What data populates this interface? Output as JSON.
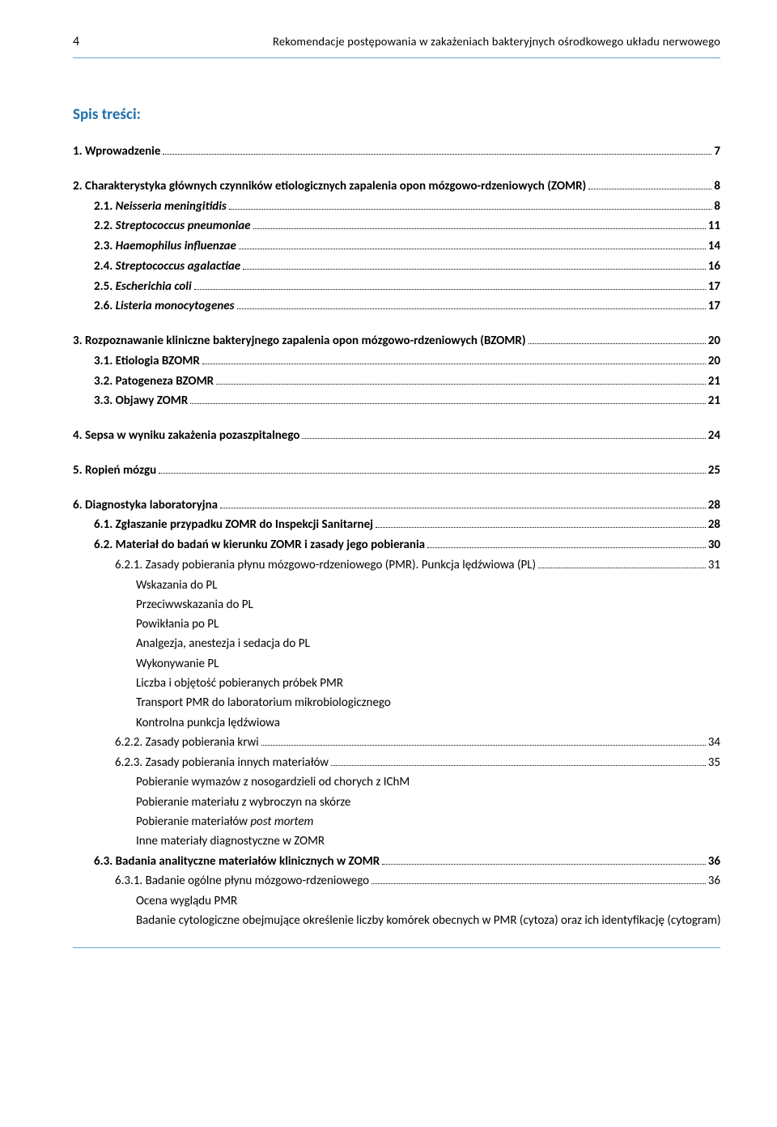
{
  "page_number": "4",
  "header_title": "Rekomendacje postępowania w zakażeniach bakteryjnych ośrodkowego układu nerwowego",
  "toc_title": "Spis treści:",
  "entries": [
    {
      "type": "l1",
      "num": "1.",
      "text": "Wprowadzenie",
      "page": "7",
      "first": true
    },
    {
      "type": "l1",
      "num": "2.",
      "text": "Charakterystyka głównych czynników etiologicznych zapalenia opon mózgowo-rdzeniowych (ZOMR)",
      "page": "8"
    },
    {
      "type": "l2",
      "num": "2.1.",
      "text": "Neisseria meningitidis",
      "italic": true,
      "page": "8"
    },
    {
      "type": "l2",
      "num": "2.2.",
      "text": "Streptococcus pneumoniae",
      "italic": true,
      "page": "11"
    },
    {
      "type": "l2",
      "num": "2.3.",
      "text": "Haemophilus influenzae",
      "italic": true,
      "page": "14"
    },
    {
      "type": "l2",
      "num": "2.4.",
      "text": "Streptococcus agalactiae",
      "italic": true,
      "page": "16"
    },
    {
      "type": "l2",
      "num": "2.5.",
      "text": "Escherichia coli",
      "italic": true,
      "page": "17"
    },
    {
      "type": "l2",
      "num": "2.6.",
      "text": "Listeria monocytogenes",
      "italic": true,
      "page": "17"
    },
    {
      "type": "l1",
      "num": "3.",
      "text": "Rozpoznawanie kliniczne bakteryjnego zapalenia opon mózgowo-rdzeniowych (BZOMR)",
      "page": "20"
    },
    {
      "type": "l2",
      "num": "3.1.",
      "text": "Etiologia BZOMR",
      "page": "20"
    },
    {
      "type": "l2",
      "num": "3.2.",
      "text": "Patogeneza BZOMR",
      "page": "21"
    },
    {
      "type": "l2",
      "num": "3.3.",
      "text": "Objawy ZOMR",
      "page": "21"
    },
    {
      "type": "l1",
      "num": "4.",
      "text": "Sepsa w wyniku zakażenia pozaszpitalnego",
      "page": "24"
    },
    {
      "type": "l1",
      "num": "5.",
      "text": "Ropień mózgu",
      "page": "25"
    },
    {
      "type": "l1",
      "num": "6.",
      "text": "Diagnostyka laboratoryjna",
      "page": "28"
    },
    {
      "type": "l2",
      "num": "6.1.",
      "text": "Zgłaszanie przypadku ZOMR do Inspekcji Sanitarnej",
      "page": "28"
    },
    {
      "type": "l2",
      "num": "6.2.",
      "text": "Materiał do badań w kierunku ZOMR i zasady jego pobierania",
      "page": "30"
    },
    {
      "type": "l3",
      "num": "6.2.1.",
      "text": "Zasady pobierania płynu mózgowo-rdzeniowego (PMR). Punkcja lędźwiowa (PL)",
      "page": "31"
    },
    {
      "type": "plain",
      "text": "Wskazania do PL"
    },
    {
      "type": "plain",
      "text": "Przeciwwskazania do PL"
    },
    {
      "type": "plain",
      "text": "Powikłania po PL"
    },
    {
      "type": "plain",
      "text": "Analgezja, anestezja i sedacja do PL"
    },
    {
      "type": "plain",
      "text": "Wykonywanie PL"
    },
    {
      "type": "plain",
      "text": "Liczba i objętość pobieranych próbek PMR"
    },
    {
      "type": "plain",
      "text": "Transport PMR do laboratorium mikrobiologicznego"
    },
    {
      "type": "plain",
      "text": "Kontrolna punkcja lędźwiowa"
    },
    {
      "type": "l3",
      "num": "6.2.2.",
      "text": "Zasady pobierania krwi",
      "page": "34"
    },
    {
      "type": "l3",
      "num": "6.2.3.",
      "text": "Zasady pobierania innych materiałów",
      "page": "35"
    },
    {
      "type": "plain",
      "text": "Pobieranie wymazów z nosogardzieli od chorych z IChM"
    },
    {
      "type": "plain",
      "text": "Pobieranie materiału z wybroczyn na skórze"
    },
    {
      "type": "plain",
      "text_html": "Pobieranie materiałów <em>post mortem</em>"
    },
    {
      "type": "plain",
      "text": "Inne materiały diagnostyczne w ZOMR"
    },
    {
      "type": "l2",
      "num": "6.3.",
      "text": "Badania analityczne materiałów klinicznych w ZOMR",
      "page": "36"
    },
    {
      "type": "l3",
      "num": "6.3.1.",
      "text": "Badanie ogólne płynu mózgowo-rdzeniowego",
      "page": "36"
    },
    {
      "type": "plain",
      "text": "Ocena wyglądu PMR"
    },
    {
      "type": "plain",
      "text": "Badanie cytologiczne obejmujące określenie liczby komórek obecnych w PMR (cytoza) oraz ich identyfikację (cytogram)"
    }
  ]
}
